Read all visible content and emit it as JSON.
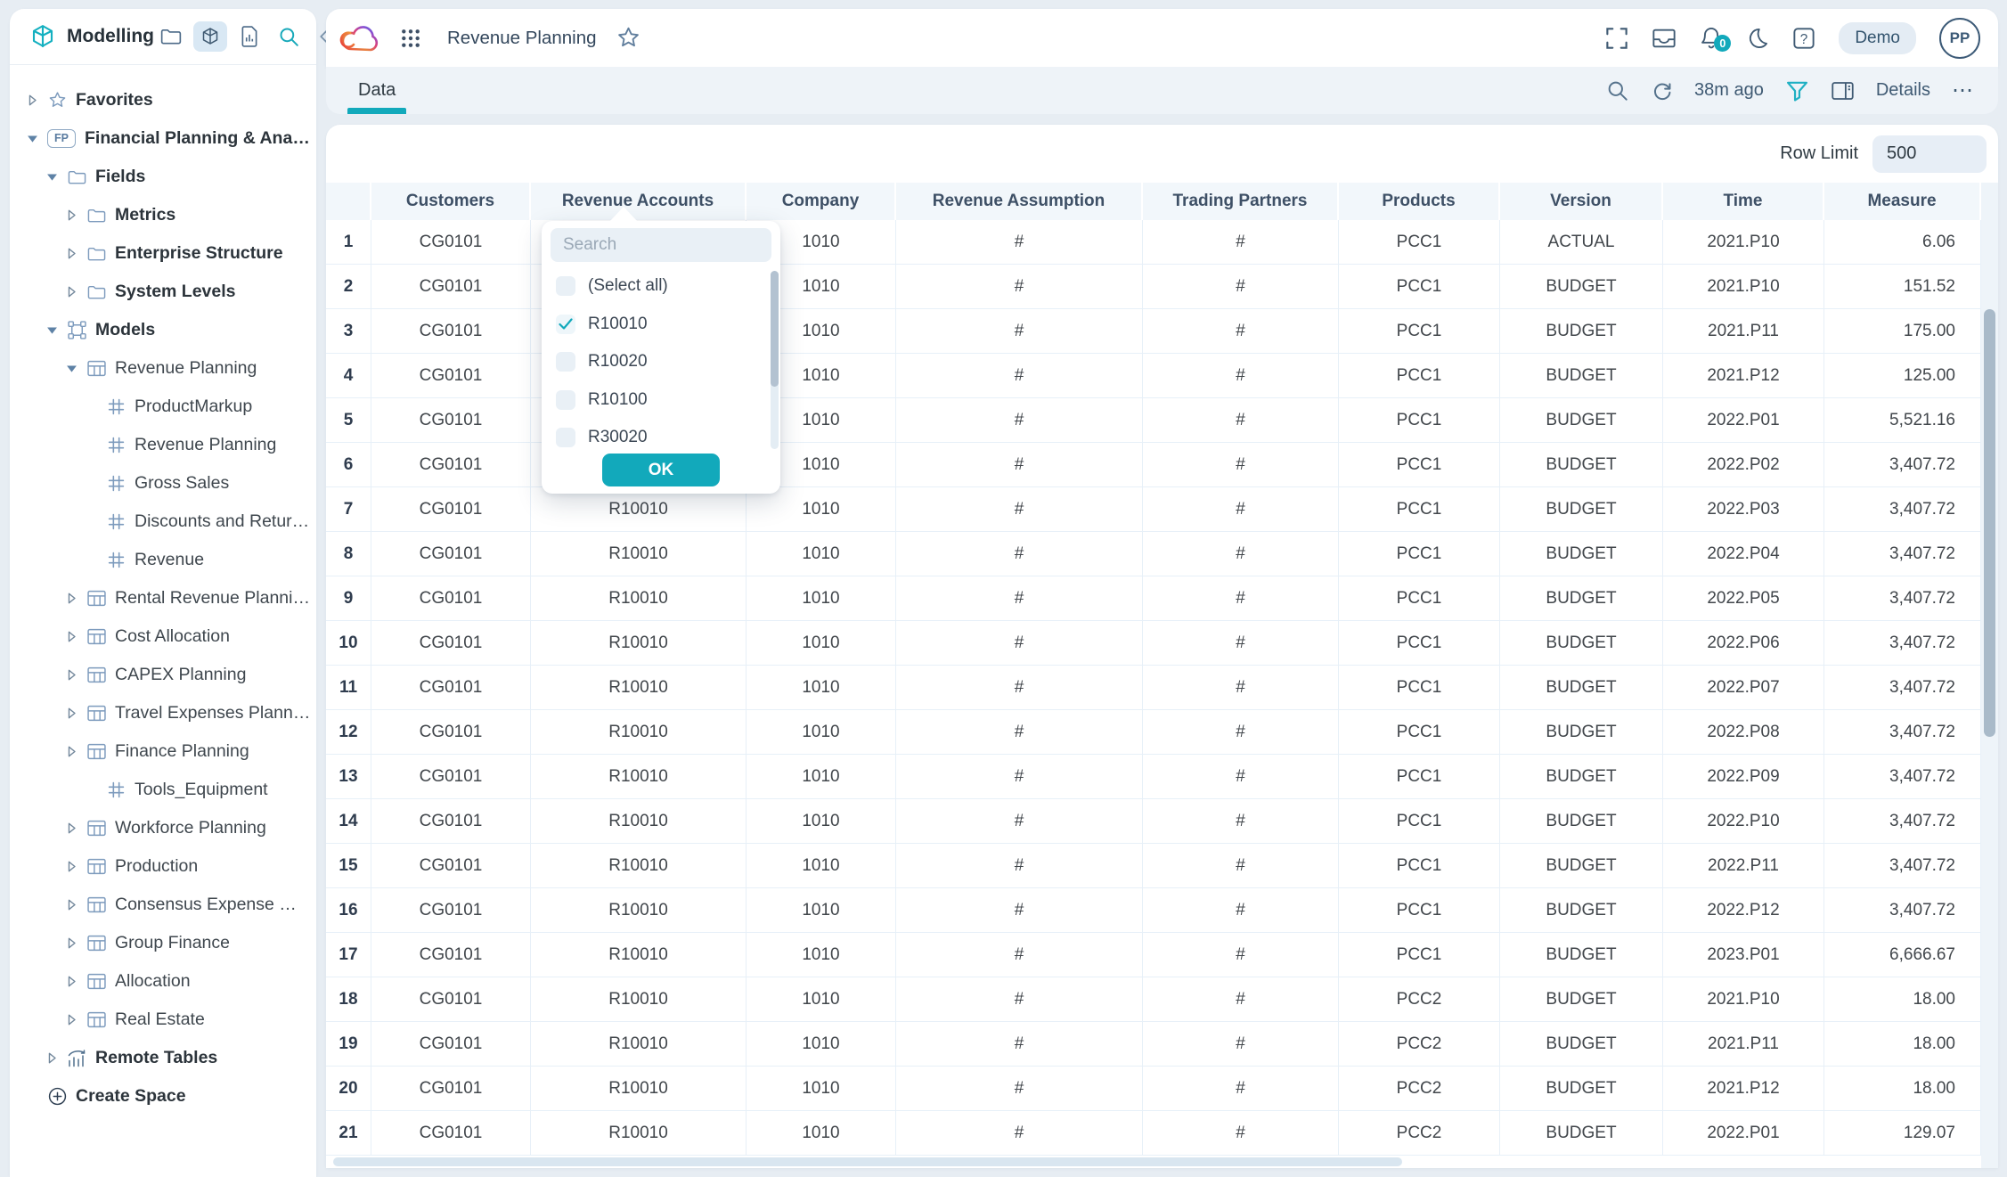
{
  "colors": {
    "accent": "#12a9bb",
    "page_bg": "#e7edf3",
    "card_bg": "#ffffff",
    "header_row_bg": "#f2f7fb",
    "strip_bg": "#eef3f8"
  },
  "sidebar": {
    "title": "Modelling",
    "tools": [
      {
        "name": "folder-icon",
        "active": false
      },
      {
        "name": "cube-icon",
        "active": true
      },
      {
        "name": "report-icon",
        "active": false
      },
      {
        "name": "search-icon",
        "active": false
      },
      {
        "name": "collapse-icon",
        "active": false
      }
    ],
    "tree": [
      {
        "label": "Favorites",
        "depth": 0,
        "caret": "right",
        "icon": "star",
        "bold": true
      },
      {
        "label": "Financial Planning & Analysis",
        "depth": 0,
        "caret": "down",
        "icon": "fp",
        "bold": true
      },
      {
        "label": "Fields",
        "depth": 1,
        "caret": "down",
        "icon": "folder",
        "bold": true
      },
      {
        "label": "Metrics",
        "depth": 2,
        "caret": "right",
        "icon": "folder",
        "bold": true
      },
      {
        "label": "Enterprise Structure",
        "depth": 2,
        "caret": "right",
        "icon": "folder",
        "bold": true
      },
      {
        "label": "System Levels",
        "depth": 2,
        "caret": "right",
        "icon": "folder",
        "bold": true
      },
      {
        "label": "Models",
        "depth": 1,
        "caret": "down",
        "icon": "models",
        "bold": true
      },
      {
        "label": "Revenue Planning",
        "depth": 2,
        "caret": "down",
        "icon": "table",
        "bold": false
      },
      {
        "label": "ProductMarkup",
        "depth": 3,
        "caret": null,
        "icon": "dim",
        "bold": false
      },
      {
        "label": "Revenue Planning",
        "depth": 3,
        "caret": null,
        "icon": "dim",
        "bold": false
      },
      {
        "label": "Gross Sales",
        "depth": 3,
        "caret": null,
        "icon": "dim",
        "bold": false
      },
      {
        "label": "Discounts and Returns, C…",
        "depth": 3,
        "caret": null,
        "icon": "dim",
        "bold": false
      },
      {
        "label": "Revenue",
        "depth": 3,
        "caret": null,
        "icon": "dim",
        "bold": false
      },
      {
        "label": "Rental Revenue Planning",
        "depth": 2,
        "caret": "right",
        "icon": "table",
        "bold": false
      },
      {
        "label": "Cost Allocation",
        "depth": 2,
        "caret": "right",
        "icon": "table",
        "bold": false
      },
      {
        "label": "CAPEX Planning",
        "depth": 2,
        "caret": "right",
        "icon": "table",
        "bold": false
      },
      {
        "label": "Travel Expenses Planning",
        "depth": 2,
        "caret": "right",
        "icon": "table",
        "bold": false
      },
      {
        "label": "Finance Planning",
        "depth": 2,
        "caret": "right",
        "icon": "table",
        "bold": false
      },
      {
        "label": "Tools_Equipment",
        "depth": 3,
        "caret": null,
        "icon": "dim",
        "bold": false
      },
      {
        "label": "Workforce Planning",
        "depth": 2,
        "caret": "right",
        "icon": "table",
        "bold": false
      },
      {
        "label": "Production",
        "depth": 2,
        "caret": "right",
        "icon": "table",
        "bold": false
      },
      {
        "label": "Consensus Expense Mo…",
        "depth": 2,
        "caret": "right",
        "icon": "table",
        "bold": false
      },
      {
        "label": "Group Finance",
        "depth": 2,
        "caret": "right",
        "icon": "table",
        "bold": false
      },
      {
        "label": "Allocation",
        "depth": 2,
        "caret": "right",
        "icon": "table",
        "bold": false
      },
      {
        "label": "Real Estate",
        "depth": 2,
        "caret": "right",
        "icon": "table",
        "bold": false
      },
      {
        "label": "Remote Tables",
        "depth": 1,
        "caret": "right",
        "icon": "remote",
        "bold": true
      },
      {
        "label": "Create Space",
        "depth": 0,
        "caret": null,
        "icon": "plus",
        "bold": true
      }
    ]
  },
  "header": {
    "title": "Revenue Planning",
    "notification_count": "0",
    "demo_badge": "Demo",
    "avatar_initials": "PP"
  },
  "tabbar": {
    "tab_label": "Data",
    "refreshed_ago": "38m ago",
    "details_label": "Details",
    "more_label": "⋯"
  },
  "toolbar": {
    "row_limit_label": "Row Limit",
    "row_limit_value": "500"
  },
  "table": {
    "columns": [
      "",
      "Customers",
      "Revenue Accounts",
      "Company",
      "Revenue Assumption",
      "Trading Partners",
      "Products",
      "Version",
      "Time",
      "Measure"
    ],
    "rows": [
      [
        "1",
        "CG0101",
        "R10010",
        "1010",
        "#",
        "#",
        "PCC1",
        "ACTUAL",
        "2021.P10",
        "6.06"
      ],
      [
        "2",
        "CG0101",
        "R10010",
        "1010",
        "#",
        "#",
        "PCC1",
        "BUDGET",
        "2021.P10",
        "151.52"
      ],
      [
        "3",
        "CG0101",
        "R10010",
        "1010",
        "#",
        "#",
        "PCC1",
        "BUDGET",
        "2021.P11",
        "175.00"
      ],
      [
        "4",
        "CG0101",
        "R10010",
        "1010",
        "#",
        "#",
        "PCC1",
        "BUDGET",
        "2021.P12",
        "125.00"
      ],
      [
        "5",
        "CG0101",
        "R10010",
        "1010",
        "#",
        "#",
        "PCC1",
        "BUDGET",
        "2022.P01",
        "5,521.16"
      ],
      [
        "6",
        "CG0101",
        "R10010",
        "1010",
        "#",
        "#",
        "PCC1",
        "BUDGET",
        "2022.P02",
        "3,407.72"
      ],
      [
        "7",
        "CG0101",
        "R10010",
        "1010",
        "#",
        "#",
        "PCC1",
        "BUDGET",
        "2022.P03",
        "3,407.72"
      ],
      [
        "8",
        "CG0101",
        "R10010",
        "1010",
        "#",
        "#",
        "PCC1",
        "BUDGET",
        "2022.P04",
        "3,407.72"
      ],
      [
        "9",
        "CG0101",
        "R10010",
        "1010",
        "#",
        "#",
        "PCC1",
        "BUDGET",
        "2022.P05",
        "3,407.72"
      ],
      [
        "10",
        "CG0101",
        "R10010",
        "1010",
        "#",
        "#",
        "PCC1",
        "BUDGET",
        "2022.P06",
        "3,407.72"
      ],
      [
        "11",
        "CG0101",
        "R10010",
        "1010",
        "#",
        "#",
        "PCC1",
        "BUDGET",
        "2022.P07",
        "3,407.72"
      ],
      [
        "12",
        "CG0101",
        "R10010",
        "1010",
        "#",
        "#",
        "PCC1",
        "BUDGET",
        "2022.P08",
        "3,407.72"
      ],
      [
        "13",
        "CG0101",
        "R10010",
        "1010",
        "#",
        "#",
        "PCC1",
        "BUDGET",
        "2022.P09",
        "3,407.72"
      ],
      [
        "14",
        "CG0101",
        "R10010",
        "1010",
        "#",
        "#",
        "PCC1",
        "BUDGET",
        "2022.P10",
        "3,407.72"
      ],
      [
        "15",
        "CG0101",
        "R10010",
        "1010",
        "#",
        "#",
        "PCC1",
        "BUDGET",
        "2022.P11",
        "3,407.72"
      ],
      [
        "16",
        "CG0101",
        "R10010",
        "1010",
        "#",
        "#",
        "PCC1",
        "BUDGET",
        "2022.P12",
        "3,407.72"
      ],
      [
        "17",
        "CG0101",
        "R10010",
        "1010",
        "#",
        "#",
        "PCC1",
        "BUDGET",
        "2023.P01",
        "6,666.67"
      ],
      [
        "18",
        "CG0101",
        "R10010",
        "1010",
        "#",
        "#",
        "PCC2",
        "BUDGET",
        "2021.P10",
        "18.00"
      ],
      [
        "19",
        "CG0101",
        "R10010",
        "1010",
        "#",
        "#",
        "PCC2",
        "BUDGET",
        "2021.P11",
        "18.00"
      ],
      [
        "20",
        "CG0101",
        "R10010",
        "1010",
        "#",
        "#",
        "PCC2",
        "BUDGET",
        "2021.P12",
        "18.00"
      ],
      [
        "21",
        "CG0101",
        "R10010",
        "1010",
        "#",
        "#",
        "PCC2",
        "BUDGET",
        "2022.P01",
        "129.07"
      ]
    ]
  },
  "filter_popup": {
    "search_placeholder": "Search",
    "options": [
      {
        "label": "(Select all)",
        "checked": false
      },
      {
        "label": "R10010",
        "checked": true
      },
      {
        "label": "R10020",
        "checked": false
      },
      {
        "label": "R10100",
        "checked": false
      },
      {
        "label": "R30020",
        "checked": false
      }
    ],
    "ok_label": "OK"
  }
}
